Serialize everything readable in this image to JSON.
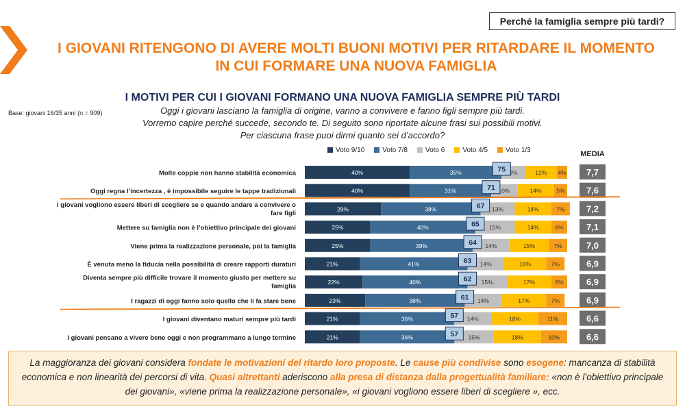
{
  "header": {
    "section_label": "Perché la famiglia sempre più tardi?",
    "title_line1": "I GIOVANI RITENGONO DI AVERE  MOLTI BUONI MOTIVI PER RITARDARE IL MOMENTO",
    "title_line2": "IN CUI FORMARE UNA NUOVA FAMIGLIA",
    "subtitle": "I MOTIVI PER CUI I GIOVANI FORMANO UNA NUOVA FAMIGLIA SEMPRE PIÙ TARDI",
    "base": "Base: giovani 16/35 anni (n = 909)",
    "question_line1": "Oggi i giovani lasciano la famiglia di origine, vanno a convivere e fanno figli sempre più tardi.",
    "question_line2": "Vorremo capire perché succede, secondo te. Di seguito sono riportate alcune frasi sui possibili motivi.",
    "question_line3": "Per ciascuna frase puoi dirmi quanto sei d’accordo?",
    "media_label": "MEDIA"
  },
  "colors": {
    "accent_orange": "#f07d1a",
    "title_navy": "#1f2e5a",
    "voto_9_10": "#243f5c",
    "voto_7_8": "#3d6b94",
    "voto_6": "#bfbfbf",
    "voto_4_5": "#ffc000",
    "voto_1_3": "#f59c1a",
    "media_box": "#6e6e6e",
    "score_box": "#b3cde3"
  },
  "chart_data": {
    "type": "bar",
    "orientation": "horizontal-stacked",
    "legend_position": "top",
    "series": [
      {
        "name": "Voto 9/10",
        "values": [
          40,
          40,
          29,
          25,
          25,
          21,
          22,
          23,
          21,
          21
        ]
      },
      {
        "name": "Voto 7/8",
        "values": [
          35,
          31,
          38,
          40,
          39,
          41,
          40,
          38,
          36,
          36
        ]
      },
      {
        "name": "Voto 6",
        "values": [
          9,
          10,
          13,
          15,
          14,
          14,
          15,
          14,
          14,
          15
        ]
      },
      {
        "name": "Voto 4/5",
        "values": [
          12,
          14,
          14,
          14,
          15,
          16,
          17,
          17,
          18,
          18
        ]
      },
      {
        "name": "Voto 1/3",
        "values": [
          4,
          5,
          7,
          6,
          7,
          7,
          6,
          7,
          11,
          10
        ]
      }
    ],
    "categories": [
      [
        "Molte coppie non hanno stabilità economica"
      ],
      [
        "Oggi regna l’incertezza , è impossibile seguire le tappe tradizionali"
      ],
      [
        "i giovani vogliono essere liberi di scegliere se e quando andare a convivere o",
        "fare figli"
      ],
      [
        "Mettere su famiglia non è l’obiettivo principale dei giovani"
      ],
      [
        "Viene prima la realizzazione personale, poi la famiglia"
      ],
      [
        "È venuta meno la fiducia nella possibilità di creare rapporti duraturi"
      ],
      [
        "Diventa sempre più difficile trovare il momento giusto per mettere su",
        "famiglia"
      ],
      [
        "I ragazzi di oggi fanno solo quello che li fa stare bene"
      ],
      [
        "I giovani diventano maturi sempre più tardi"
      ],
      [
        "I giovani pensano a vivere bene oggi e non programmano a lungo termine"
      ]
    ],
    "top_scores": [
      75,
      71,
      67,
      65,
      64,
      63,
      62,
      61,
      57,
      57
    ],
    "media": [
      "7,7",
      "7,6",
      "7,2",
      "7,1",
      "7,0",
      "6,9",
      "6,9",
      "6,9",
      "6,6",
      "6,6"
    ],
    "xlim": [
      0,
      100
    ]
  },
  "conclusion": {
    "p1": "La maggioranza dei giovani considera ",
    "h1": "fondate  le motivazioni del ritardo loro proposte",
    "p2": ". Le ",
    "h2": "cause più condivise",
    "p3": " sono ",
    "h3": "esogene",
    "p4": ": mancanza di stabilità economica e non linearità dei percorsi di vita. ",
    "h4": "Quasi altrettanti",
    "p5": " aderiscono ",
    "h5": "alla presa di distanza dalla progettualità familiare:",
    "p6": " «non è l’obiettivo principale dei giovani», «viene prima la realizzazione personale», «i giovani vogliono essere liberi di scegliere »,  ecc."
  }
}
